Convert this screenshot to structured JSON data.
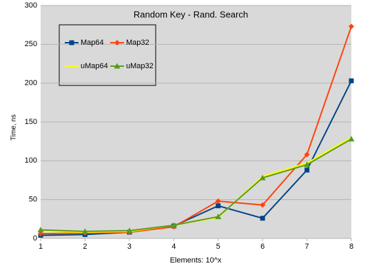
{
  "chart_data": {
    "type": "line",
    "title": "Random Key - Rand. Search",
    "x_label": "Elements: 10^x",
    "y_label": "Time, ns",
    "x": [
      1,
      2,
      3,
      4,
      5,
      6,
      7,
      8
    ],
    "xlim": [
      1,
      8
    ],
    "xticks": [
      1,
      2,
      3,
      4,
      5,
      6,
      7,
      8
    ],
    "ylim": [
      0,
      300
    ],
    "yticks": [
      0,
      50,
      100,
      150,
      200,
      250,
      300
    ],
    "grid": true,
    "legend": "upper left",
    "series": [
      {
        "name": "Map64",
        "color": "#004586",
        "marker": "square",
        "values": [
          4,
          5,
          8,
          16,
          42,
          26,
          88,
          203
        ]
      },
      {
        "name": "Map32",
        "color": "#ff420e",
        "marker": "diamond",
        "values": [
          6,
          7,
          8,
          15,
          48,
          43,
          108,
          273
        ]
      },
      {
        "name": "uMap64",
        "color": "#ffff00",
        "marker": "none",
        "values": [
          9,
          8,
          9,
          17,
          27,
          80,
          97,
          130
        ]
      },
      {
        "name": "uMap32",
        "color": "#579d1c",
        "marker": "triangle",
        "values": [
          11,
          9,
          10,
          17,
          28,
          78,
          95,
          128
        ]
      }
    ]
  }
}
